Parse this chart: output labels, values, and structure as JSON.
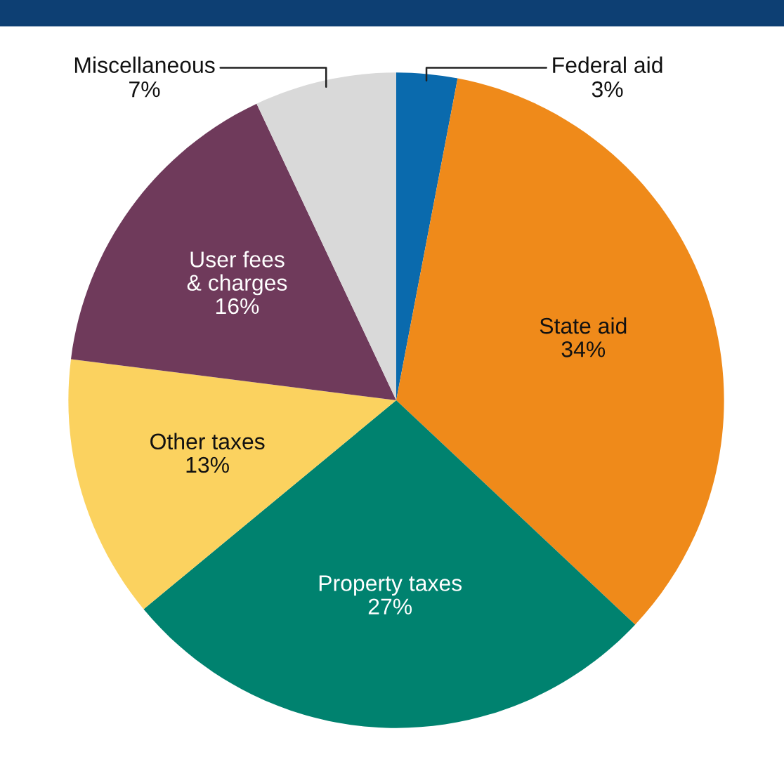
{
  "chart_data": {
    "type": "pie",
    "categories": [
      "Federal aid",
      "State aid",
      "Property taxes",
      "Other taxes",
      "User fees\n& charges",
      "Miscellaneous"
    ],
    "values": [
      3,
      34,
      27,
      13,
      16,
      7
    ],
    "value_labels": [
      "3%",
      "34%",
      "27%",
      "13%",
      "16%",
      "7%"
    ],
    "colors": [
      "#0a6aad",
      "#ef8a1a",
      "#00826f",
      "#fbd25f",
      "#6f3a5b",
      "#d9d9d9"
    ]
  }
}
